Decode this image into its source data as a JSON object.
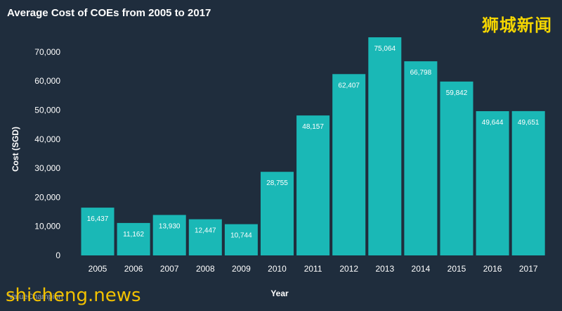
{
  "title": "Average Cost of COEs from 2005 to 2017",
  "brand_cn": "狮城新闻",
  "footer": {
    "site": "shicheng.news",
    "source": "ValueChampion"
  },
  "colors": {
    "background": "#1f2d3d",
    "bar": "#1ab8b6",
    "text": "#ffffff",
    "brand": "#f5d600"
  },
  "chart_data": {
    "type": "bar",
    "title": "Average Cost of COEs from 2005 to 2017",
    "xlabel": "Year",
    "ylabel": "Cost (SGD)",
    "categories": [
      "2005",
      "2006",
      "2007",
      "2008",
      "2009",
      "2010",
      "2011",
      "2012",
      "2013",
      "2014",
      "2015",
      "2016",
      "2017"
    ],
    "values": [
      16437,
      11162,
      13930,
      12447,
      10744,
      28755,
      48157,
      62407,
      75064,
      66798,
      59842,
      49644,
      49651
    ],
    "value_labels": [
      "16,437",
      "11,162",
      "13,930",
      "12,447",
      "10,744",
      "28,755",
      "48,157",
      "62,407",
      "75,064",
      "66,798",
      "59,842",
      "49,644",
      "49,651"
    ],
    "ylim": [
      0,
      75000
    ],
    "yticks": [
      0,
      10000,
      20000,
      30000,
      40000,
      50000,
      60000,
      70000
    ],
    "ytick_labels": [
      "0",
      "10,000",
      "20,000",
      "30,000",
      "40,000",
      "50,000",
      "60,000",
      "70,000"
    ],
    "grid": false,
    "legend": "none"
  }
}
